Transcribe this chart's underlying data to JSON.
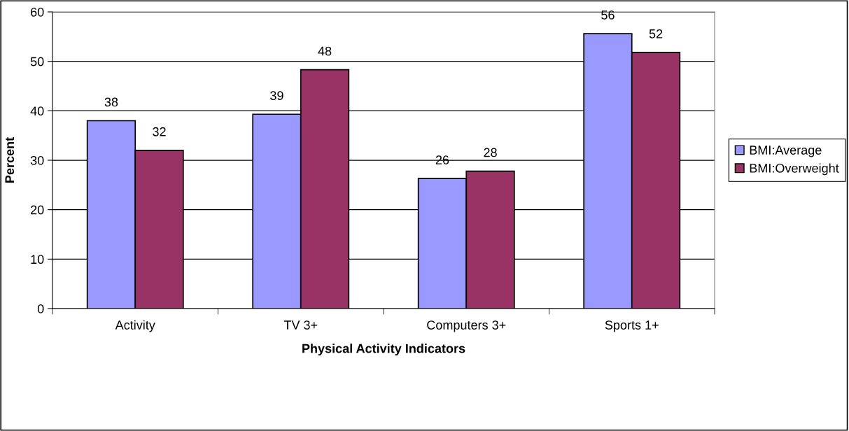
{
  "chart_data": {
    "type": "bar",
    "xlabel": "Physical Activity Indicators",
    "ylabel": "Percent",
    "categories": [
      "Activity",
      "TV 3+",
      "Computers 3+",
      "Sports 1+"
    ],
    "series": [
      {
        "name": "BMI:Average",
        "color": "#9999ff",
        "values": [
          38,
          39.3,
          26.3,
          55.6
        ],
        "value_labels": [
          "38",
          "39",
          "26",
          "56"
        ]
      },
      {
        "name": "BMI:Overweight",
        "color": "#993366",
        "values": [
          32,
          48.3,
          27.8,
          51.8
        ],
        "value_labels": [
          "32",
          "48",
          "28",
          "52"
        ]
      }
    ],
    "ylim": [
      0,
      60
    ],
    "yticks": [
      0,
      10,
      20,
      30,
      40,
      50,
      60
    ],
    "grid": "y",
    "legend": "right"
  }
}
